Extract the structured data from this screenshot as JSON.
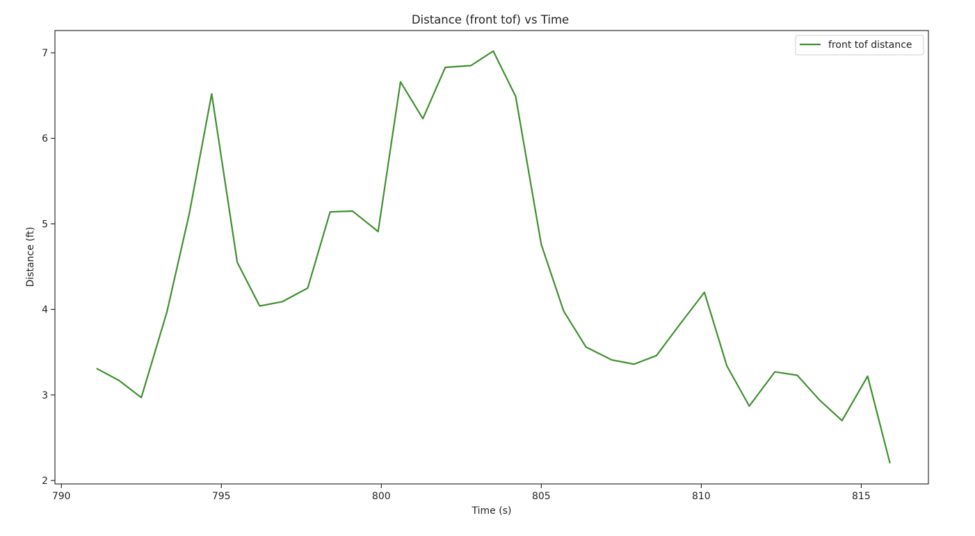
{
  "chart_data": {
    "type": "line",
    "title": "Distance (front tof) vs Time",
    "xlabel": "Time (s)",
    "ylabel": "Distance (ft)",
    "xlim": [
      789.8,
      817.1
    ],
    "ylim": [
      1.96,
      7.26
    ],
    "xticks": [
      790,
      795,
      800,
      805,
      810,
      815
    ],
    "yticks": [
      2,
      3,
      4,
      5,
      6,
      7
    ],
    "grid": false,
    "legend_position": "top-right",
    "series": [
      {
        "name": "front tof distance",
        "color": "#3d8f2d",
        "x": [
          791.1,
          791.8,
          792.5,
          793.3,
          794.0,
          794.7,
          795.5,
          796.2,
          796.9,
          797.7,
          798.4,
          799.1,
          799.9,
          800.6,
          801.3,
          802.0,
          802.8,
          803.5,
          804.2,
          805.0,
          805.7,
          806.4,
          807.2,
          807.9,
          808.6,
          809.3,
          810.1,
          810.8,
          811.5,
          812.3,
          813.0,
          813.7,
          814.4,
          815.2,
          815.9
        ],
        "values": [
          3.31,
          3.17,
          2.97,
          3.97,
          5.12,
          6.52,
          4.55,
          4.04,
          4.09,
          4.25,
          5.14,
          5.15,
          4.91,
          6.66,
          6.23,
          6.83,
          6.85,
          7.02,
          6.49,
          4.76,
          3.98,
          3.56,
          3.41,
          3.36,
          3.46,
          3.81,
          4.2,
          3.34,
          2.87,
          3.27,
          3.23,
          2.94,
          2.7,
          3.22,
          2.2
        ]
      }
    ]
  }
}
